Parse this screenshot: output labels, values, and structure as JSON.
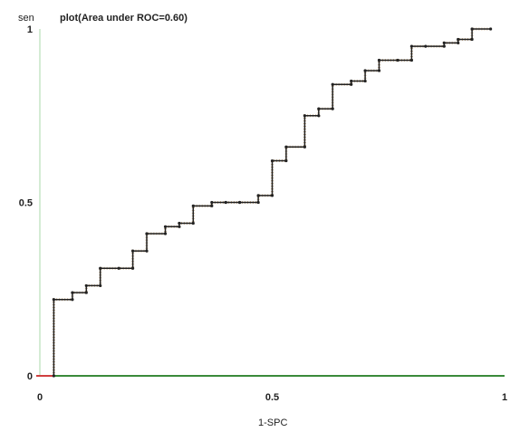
{
  "chart_data": {
    "type": "line",
    "title": "plot(Area under ROC=0.60)",
    "xlabel": "1-SPC",
    "ylabel": "sen",
    "xlim": [
      0,
      1
    ],
    "ylim": [
      0,
      1
    ],
    "x_ticks": [
      "0",
      "0.5",
      "1"
    ],
    "y_ticks": [
      "0",
      "0.5",
      "1"
    ],
    "grid": false,
    "colors": {
      "curve": "#222222",
      "curve_dots": "#c8ad8a",
      "baseline": "#3a8a3a",
      "axis": "#a8d8a8"
    },
    "series": [
      {
        "points": [
          [
            0.03,
            0
          ],
          [
            0.03,
            0.22
          ],
          [
            0.07,
            0.22
          ],
          [
            0.07,
            0.24
          ],
          [
            0.1,
            0.24
          ],
          [
            0.1,
            0.26
          ],
          [
            0.13,
            0.26
          ],
          [
            0.13,
            0.31
          ],
          [
            0.17,
            0.31
          ],
          [
            0.2,
            0.31
          ],
          [
            0.2,
            0.36
          ],
          [
            0.23,
            0.36
          ],
          [
            0.23,
            0.41
          ],
          [
            0.27,
            0.41
          ],
          [
            0.27,
            0.43
          ],
          [
            0.3,
            0.43
          ],
          [
            0.3,
            0.44
          ],
          [
            0.33,
            0.44
          ],
          [
            0.33,
            0.49
          ],
          [
            0.37,
            0.49
          ],
          [
            0.37,
            0.5
          ],
          [
            0.4,
            0.5
          ],
          [
            0.4,
            0.5
          ],
          [
            0.43,
            0.5
          ],
          [
            0.43,
            0.5
          ],
          [
            0.47,
            0.5
          ],
          [
            0.47,
            0.52
          ],
          [
            0.5,
            0.52
          ],
          [
            0.5,
            0.62
          ],
          [
            0.53,
            0.62
          ],
          [
            0.53,
            0.66
          ],
          [
            0.57,
            0.66
          ],
          [
            0.57,
            0.75
          ],
          [
            0.6,
            0.75
          ],
          [
            0.6,
            0.77
          ],
          [
            0.63,
            0.77
          ],
          [
            0.63,
            0.84
          ],
          [
            0.67,
            0.84
          ],
          [
            0.67,
            0.85
          ],
          [
            0.7,
            0.85
          ],
          [
            0.7,
            0.88
          ],
          [
            0.73,
            0.88
          ],
          [
            0.73,
            0.91
          ],
          [
            0.77,
            0.91
          ],
          [
            0.8,
            0.91
          ],
          [
            0.8,
            0.95
          ],
          [
            0.83,
            0.95
          ],
          [
            0.87,
            0.95
          ],
          [
            0.87,
            0.96
          ],
          [
            0.9,
            0.96
          ],
          [
            0.9,
            0.97
          ],
          [
            0.93,
            0.97
          ],
          [
            0.93,
            1.0
          ],
          [
            0.97,
            1.0
          ]
        ]
      }
    ]
  }
}
